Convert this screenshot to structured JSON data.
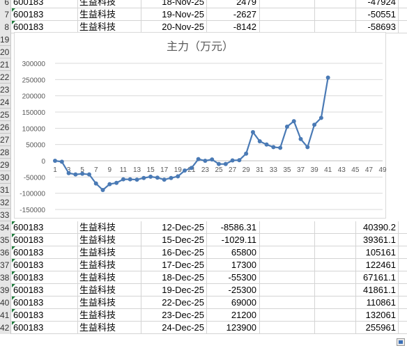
{
  "sheet": {
    "top_rows": [
      {
        "rownum": "6",
        "code": "600183",
        "name": "生益科技",
        "date": "18-Nov-25",
        "value": "2479",
        "cum": "-47924"
      },
      {
        "rownum": "7",
        "code": "600183",
        "name": "生益科技",
        "date": "19-Nov-25",
        "value": "-2627",
        "cum": "-50551"
      },
      {
        "rownum": "8",
        "code": "600183",
        "name": "生益科技",
        "date": "20-Nov-25",
        "value": "-8142",
        "cum": "-58693"
      }
    ],
    "hidden_rownums": [
      "19",
      "20",
      "21",
      "22",
      "23",
      "24",
      "25",
      "26",
      "27",
      "28",
      "29",
      "30",
      "31",
      "32",
      "33"
    ],
    "bottom_rows": [
      {
        "rownum": "34",
        "code": "600183",
        "name": "生益科技",
        "date": "12-Dec-25",
        "value": "-8586.31",
        "cum": "40390.2"
      },
      {
        "rownum": "35",
        "code": "600183",
        "name": "生益科技",
        "date": "15-Dec-25",
        "value": "-1029.11",
        "cum": "39361.1"
      },
      {
        "rownum": "36",
        "code": "600183",
        "name": "生益科技",
        "date": "16-Dec-25",
        "value": "65800",
        "cum": "105161"
      },
      {
        "rownum": "37",
        "code": "600183",
        "name": "生益科技",
        "date": "17-Dec-25",
        "value": "17300",
        "cum": "122461"
      },
      {
        "rownum": "38",
        "code": "600183",
        "name": "生益科技",
        "date": "18-Dec-25",
        "value": "-55300",
        "cum": "67161.1"
      },
      {
        "rownum": "39",
        "code": "600183",
        "name": "生益科技",
        "date": "19-Dec-25",
        "value": "-25300",
        "cum": "41861.1"
      },
      {
        "rownum": "40",
        "code": "600183",
        "name": "生益科技",
        "date": "22-Dec-25",
        "value": "69000",
        "cum": "110861"
      },
      {
        "rownum": "41",
        "code": "600183",
        "name": "生益科技",
        "date": "23-Dec-25",
        "value": "21200",
        "cum": "132061"
      },
      {
        "rownum": "42",
        "code": "600183",
        "name": "生益科技",
        "date": "24-Dec-25",
        "value": "123900",
        "cum": "255961"
      }
    ]
  },
  "chart_data": {
    "type": "line",
    "title": "主力（万元）",
    "xlabel": "",
    "ylabel": "",
    "ylim": [
      -150000,
      300000
    ],
    "yticks": [
      300000,
      250000,
      200000,
      150000,
      100000,
      50000,
      0,
      -50000,
      -100000,
      -150000
    ],
    "xlim": [
      1,
      49
    ],
    "xticks": [
      1,
      3,
      5,
      7,
      9,
      11,
      13,
      15,
      17,
      19,
      21,
      23,
      25,
      27,
      29,
      31,
      33,
      35,
      37,
      39,
      41,
      43,
      45,
      47,
      49
    ],
    "grid": "horizontal",
    "color": "#4a7ab5",
    "series": [
      {
        "x": [
          1,
          2,
          3,
          4,
          5,
          6,
          7,
          8,
          9,
          10,
          11,
          12,
          13,
          14,
          15,
          16,
          17,
          18,
          19,
          20,
          21,
          22,
          23,
          24,
          25,
          26,
          27,
          28,
          29,
          30,
          31,
          32,
          33,
          34,
          35,
          36,
          37,
          38,
          39,
          40,
          41
        ],
        "values": [
          0,
          -3000,
          -38000,
          -42000,
          -40000,
          -42000,
          -70000,
          -90000,
          -72000,
          -68000,
          -57000,
          -57000,
          -58000,
          -53000,
          -49000,
          -52000,
          -58000,
          -53000,
          -48000,
          -30000,
          -22000,
          5000,
          0,
          4000,
          -10000,
          -10000,
          1000,
          2000,
          22000,
          88000,
          60000,
          50000,
          42000,
          40000,
          105000,
          122000,
          67000,
          42000,
          111000,
          132000,
          256000
        ]
      }
    ]
  }
}
